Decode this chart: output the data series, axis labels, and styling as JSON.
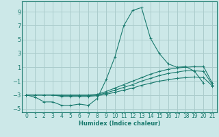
{
  "xlabel": "Humidex (Indice chaleur)",
  "ylabel": "",
  "bg_color": "#cce8e8",
  "grid_color": "#aacccc",
  "line_color": "#1a7a6e",
  "xlim": [
    -0.5,
    21.5
  ],
  "ylim": [
    -5.5,
    10.5
  ],
  "yticks": [
    -5,
    -3,
    -1,
    1,
    3,
    5,
    7,
    9
  ],
  "xticks": [
    0,
    1,
    2,
    3,
    4,
    5,
    6,
    7,
    8,
    9,
    10,
    11,
    12,
    13,
    14,
    15,
    16,
    17,
    18,
    19,
    20,
    21
  ],
  "series": [
    {
      "x": [
        0,
        1,
        2,
        3,
        4,
        5,
        6,
        7,
        8,
        9,
        10,
        11,
        12,
        13,
        14,
        15,
        16,
        17,
        18,
        19,
        20,
        21
      ],
      "y": [
        -3.0,
        -3.3,
        -4.0,
        -4.0,
        -4.5,
        -4.5,
        -4.3,
        -4.5,
        -3.5,
        -0.8,
        2.5,
        7.0,
        9.2,
        9.6,
        5.2,
        3.0,
        1.5,
        1.0,
        1.1,
        0.4,
        -1.3,
        null
      ]
    },
    {
      "x": [
        0,
        1,
        2,
        3,
        4,
        5,
        6,
        7,
        8,
        9,
        10,
        11,
        12,
        13,
        14,
        15,
        16,
        17,
        18,
        19,
        20,
        21
      ],
      "y": [
        -3.0,
        -3.0,
        -3.0,
        -3.0,
        -3.0,
        -3.0,
        -3.0,
        -3.0,
        -2.9,
        -2.5,
        -2.0,
        -1.5,
        -1.0,
        -0.5,
        0.0,
        0.4,
        0.7,
        0.9,
        1.0,
        1.1,
        1.1,
        -1.3
      ]
    },
    {
      "x": [
        0,
        1,
        2,
        3,
        4,
        5,
        6,
        7,
        8,
        9,
        10,
        11,
        12,
        13,
        14,
        15,
        16,
        17,
        18,
        19,
        20,
        21
      ],
      "y": [
        -3.0,
        -3.0,
        -3.0,
        -3.0,
        -3.1,
        -3.1,
        -3.1,
        -3.1,
        -3.0,
        -2.7,
        -2.3,
        -1.9,
        -1.5,
        -1.0,
        -0.6,
        -0.2,
        0.1,
        0.3,
        0.5,
        0.5,
        0.4,
        -1.5
      ]
    },
    {
      "x": [
        0,
        1,
        2,
        3,
        4,
        5,
        6,
        7,
        8,
        9,
        10,
        11,
        12,
        13,
        14,
        15,
        16,
        17,
        18,
        19,
        20,
        21
      ],
      "y": [
        -3.0,
        -3.0,
        -3.0,
        -3.0,
        -3.2,
        -3.2,
        -3.2,
        -3.2,
        -3.1,
        -2.9,
        -2.6,
        -2.3,
        -2.0,
        -1.6,
        -1.3,
        -1.0,
        -0.8,
        -0.6,
        -0.5,
        -0.4,
        -0.5,
        -1.7
      ]
    }
  ]
}
